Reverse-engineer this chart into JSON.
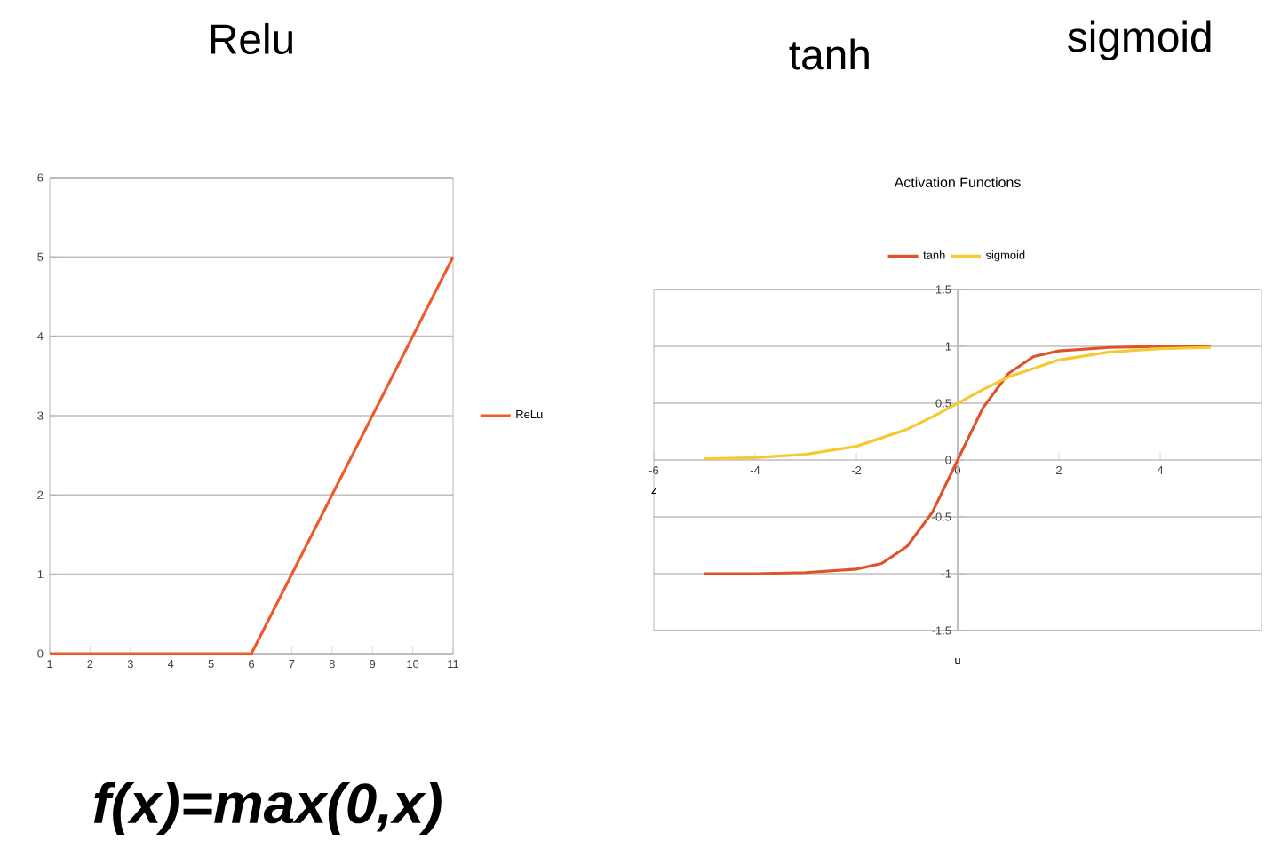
{
  "chart_data": [
    {
      "type": "line",
      "title": "Relu",
      "annotations": [
        "f(x)=max(0,x)"
      ],
      "x": [
        1,
        2,
        3,
        4,
        5,
        6,
        7,
        8,
        9,
        10,
        11
      ],
      "series": [
        {
          "name": "ReLu",
          "color": "#ee5a28",
          "values": [
            0,
            0,
            0,
            0,
            0,
            0,
            1,
            2,
            3,
            4,
            5
          ]
        }
      ],
      "xlim": [
        1,
        11
      ],
      "xticks": [
        1,
        2,
        3,
        4,
        5,
        6,
        7,
        8,
        9,
        10,
        11
      ],
      "ylim": [
        0,
        6
      ],
      "yticks": [
        0,
        1,
        2,
        3,
        4,
        5,
        6
      ],
      "grid": "y",
      "legend": "right",
      "marker": "none",
      "line_style": "solid"
    },
    {
      "type": "line",
      "title": "Activation Functions",
      "annotations": [
        "tanh",
        "sigmoid"
      ],
      "xlabel": "u",
      "ylabel": "z",
      "series": [
        {
          "name": "tanh",
          "color": "#e0522a",
          "x": [
            -5,
            -4,
            -3,
            -2,
            -1.5,
            -1,
            -0.5,
            0,
            0.5,
            1,
            1.5,
            2,
            3,
            4,
            5
          ],
          "values": [
            -1,
            -1,
            -0.99,
            -0.96,
            -0.91,
            -0.76,
            -0.46,
            0,
            0.46,
            0.76,
            0.91,
            0.96,
            0.99,
            1,
            1
          ]
        },
        {
          "name": "sigmoid",
          "color": "#f5c932",
          "x": [
            -5,
            -4,
            -3,
            -2,
            -1,
            -0.5,
            0,
            0.5,
            1,
            2,
            3,
            4,
            5
          ],
          "values": [
            0.01,
            0.02,
            0.05,
            0.12,
            0.27,
            0.38,
            0.5,
            0.62,
            0.73,
            0.88,
            0.95,
            0.98,
            0.99
          ]
        }
      ],
      "xlim": [
        -6,
        6
      ],
      "xticks": [
        -6,
        -4,
        -2,
        0,
        2,
        4
      ],
      "ylim": [
        -1.5,
        1.5
      ],
      "yticks": [
        -1.5,
        -1,
        -0.5,
        0,
        0.5,
        1,
        1.5
      ],
      "grid": "y",
      "legend": "top",
      "marker": "none",
      "line_style": "solid"
    }
  ]
}
